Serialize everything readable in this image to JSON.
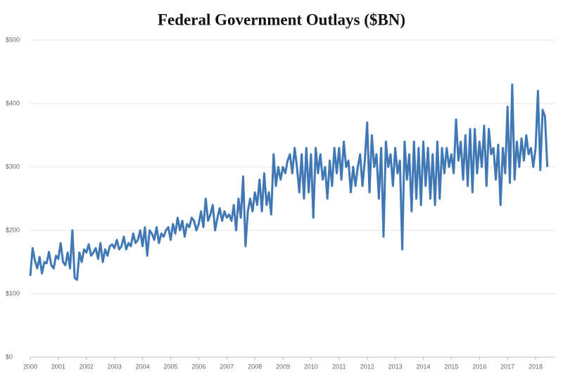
{
  "chart_data": {
    "type": "line",
    "title": "Federal Government Outlays ($BN)",
    "color": "#3f78b5",
    "x": [
      2000,
      2000.083,
      2000.167,
      2000.25,
      2000.333,
      2000.417,
      2000.5,
      2000.583,
      2000.667,
      2000.75,
      2000.833,
      2000.917,
      2001,
      2001.083,
      2001.167,
      2001.25,
      2001.333,
      2001.417,
      2001.5,
      2001.583,
      2001.667,
      2001.75,
      2001.833,
      2001.917,
      2002,
      2002.083,
      2002.167,
      2002.25,
      2002.333,
      2002.417,
      2002.5,
      2002.583,
      2002.667,
      2002.75,
      2002.833,
      2002.917,
      2003,
      2003.083,
      2003.167,
      2003.25,
      2003.333,
      2003.417,
      2003.5,
      2003.583,
      2003.667,
      2003.75,
      2003.833,
      2003.917,
      2004,
      2004.083,
      2004.167,
      2004.25,
      2004.333,
      2004.417,
      2004.5,
      2004.583,
      2004.667,
      2004.75,
      2004.833,
      2004.917,
      2005,
      2005.083,
      2005.167,
      2005.25,
      2005.333,
      2005.417,
      2005.5,
      2005.583,
      2005.667,
      2005.75,
      2005.833,
      2005.917,
      2006,
      2006.083,
      2006.167,
      2006.25,
      2006.333,
      2006.417,
      2006.5,
      2006.583,
      2006.667,
      2006.75,
      2006.833,
      2006.917,
      2007,
      2007.083,
      2007.167,
      2007.25,
      2007.333,
      2007.417,
      2007.5,
      2007.583,
      2007.667,
      2007.75,
      2007.833,
      2007.917,
      2008,
      2008.083,
      2008.167,
      2008.25,
      2008.333,
      2008.417,
      2008.5,
      2008.583,
      2008.667,
      2008.75,
      2008.833,
      2008.917,
      2009,
      2009.083,
      2009.167,
      2009.25,
      2009.333,
      2009.417,
      2009.5,
      2009.583,
      2009.667,
      2009.75,
      2009.833,
      2009.917,
      2010,
      2010.083,
      2010.167,
      2010.25,
      2010.333,
      2010.417,
      2010.5,
      2010.583,
      2010.667,
      2010.75,
      2010.833,
      2010.917,
      2011,
      2011.083,
      2011.167,
      2011.25,
      2011.333,
      2011.417,
      2011.5,
      2011.583,
      2011.667,
      2011.75,
      2011.833,
      2011.917,
      2012,
      2012.083,
      2012.167,
      2012.25,
      2012.333,
      2012.417,
      2012.5,
      2012.583,
      2012.667,
      2012.75,
      2012.833,
      2012.917,
      2013,
      2013.083,
      2013.167,
      2013.25,
      2013.333,
      2013.417,
      2013.5,
      2013.583,
      2013.667,
      2013.75,
      2013.833,
      2013.917,
      2014,
      2014.083,
      2014.167,
      2014.25,
      2014.333,
      2014.417,
      2014.5,
      2014.583,
      2014.667,
      2014.75,
      2014.833,
      2014.917,
      2015,
      2015.083,
      2015.167,
      2015.25,
      2015.333,
      2015.417,
      2015.5,
      2015.583,
      2015.667,
      2015.75,
      2015.833,
      2015.917,
      2016,
      2016.083,
      2016.167,
      2016.25,
      2016.333,
      2016.417,
      2016.5,
      2016.583,
      2016.667,
      2016.75,
      2016.833,
      2016.917,
      2017,
      2017.083,
      2017.167,
      2017.25,
      2017.333,
      2017.417,
      2017.5,
      2017.583,
      2017.667,
      2017.75,
      2017.833,
      2017.917,
      2018,
      2018.083,
      2018.167,
      2018.25,
      2018.333,
      2018.417
    ],
    "values": [
      128,
      172,
      152,
      140,
      158,
      132,
      150,
      148,
      166,
      145,
      140,
      160,
      155,
      180,
      150,
      145,
      165,
      140,
      200,
      125,
      122,
      165,
      150,
      170,
      165,
      178,
      160,
      165,
      172,
      155,
      180,
      150,
      170,
      160,
      175,
      178,
      172,
      185,
      170,
      175,
      190,
      170,
      180,
      175,
      195,
      180,
      185,
      200,
      175,
      205,
      160,
      200,
      195,
      185,
      205,
      180,
      195,
      190,
      200,
      205,
      185,
      210,
      195,
      220,
      200,
      215,
      190,
      210,
      205,
      220,
      215,
      200,
      210,
      230,
      205,
      250,
      215,
      225,
      240,
      200,
      220,
      235,
      215,
      230,
      220,
      225,
      215,
      240,
      200,
      250,
      220,
      285,
      175,
      230,
      250,
      230,
      260,
      240,
      280,
      230,
      290,
      240,
      260,
      225,
      320,
      270,
      300,
      280,
      300,
      290,
      310,
      320,
      290,
      330,
      300,
      260,
      320,
      250,
      330,
      260,
      320,
      220,
      330,
      290,
      320,
      280,
      300,
      250,
      310,
      270,
      330,
      290,
      330,
      280,
      340,
      300,
      310,
      260,
      300,
      270,
      300,
      320,
      270,
      310,
      370,
      260,
      350,
      300,
      320,
      250,
      330,
      190,
      340,
      300,
      320,
      270,
      330,
      290,
      310,
      170,
      340,
      280,
      320,
      230,
      340,
      250,
      330,
      240,
      340,
      270,
      330,
      250,
      320,
      240,
      340,
      250,
      330,
      290,
      330,
      300,
      320,
      290,
      375,
      310,
      340,
      280,
      350,
      270,
      360,
      260,
      360,
      290,
      340,
      300,
      365,
      270,
      360,
      320,
      330,
      280,
      335,
      240,
      330,
      290,
      395,
      275,
      430,
      280,
      340,
      300,
      345,
      310,
      350,
      320,
      330,
      300,
      330,
      420,
      295,
      390,
      380,
      300
    ],
    "xlim": [
      2000,
      2018.7
    ],
    "xticks": [
      2000,
      2001,
      2002,
      2003,
      2004,
      2005,
      2006,
      2007,
      2008,
      2009,
      2010,
      2011,
      2012,
      2013,
      2014,
      2015,
      2016,
      2017,
      2018
    ],
    "ylim": [
      0,
      500
    ],
    "yticks": [
      {
        "value": 0,
        "label": "$0"
      },
      {
        "value": 100,
        "label": "$100"
      },
      {
        "value": 200,
        "label": "$200"
      },
      {
        "value": 300,
        "label": "$300"
      },
      {
        "value": 400,
        "label": "$400"
      },
      {
        "value": 500,
        "label": "$500"
      }
    ],
    "grid": true
  }
}
